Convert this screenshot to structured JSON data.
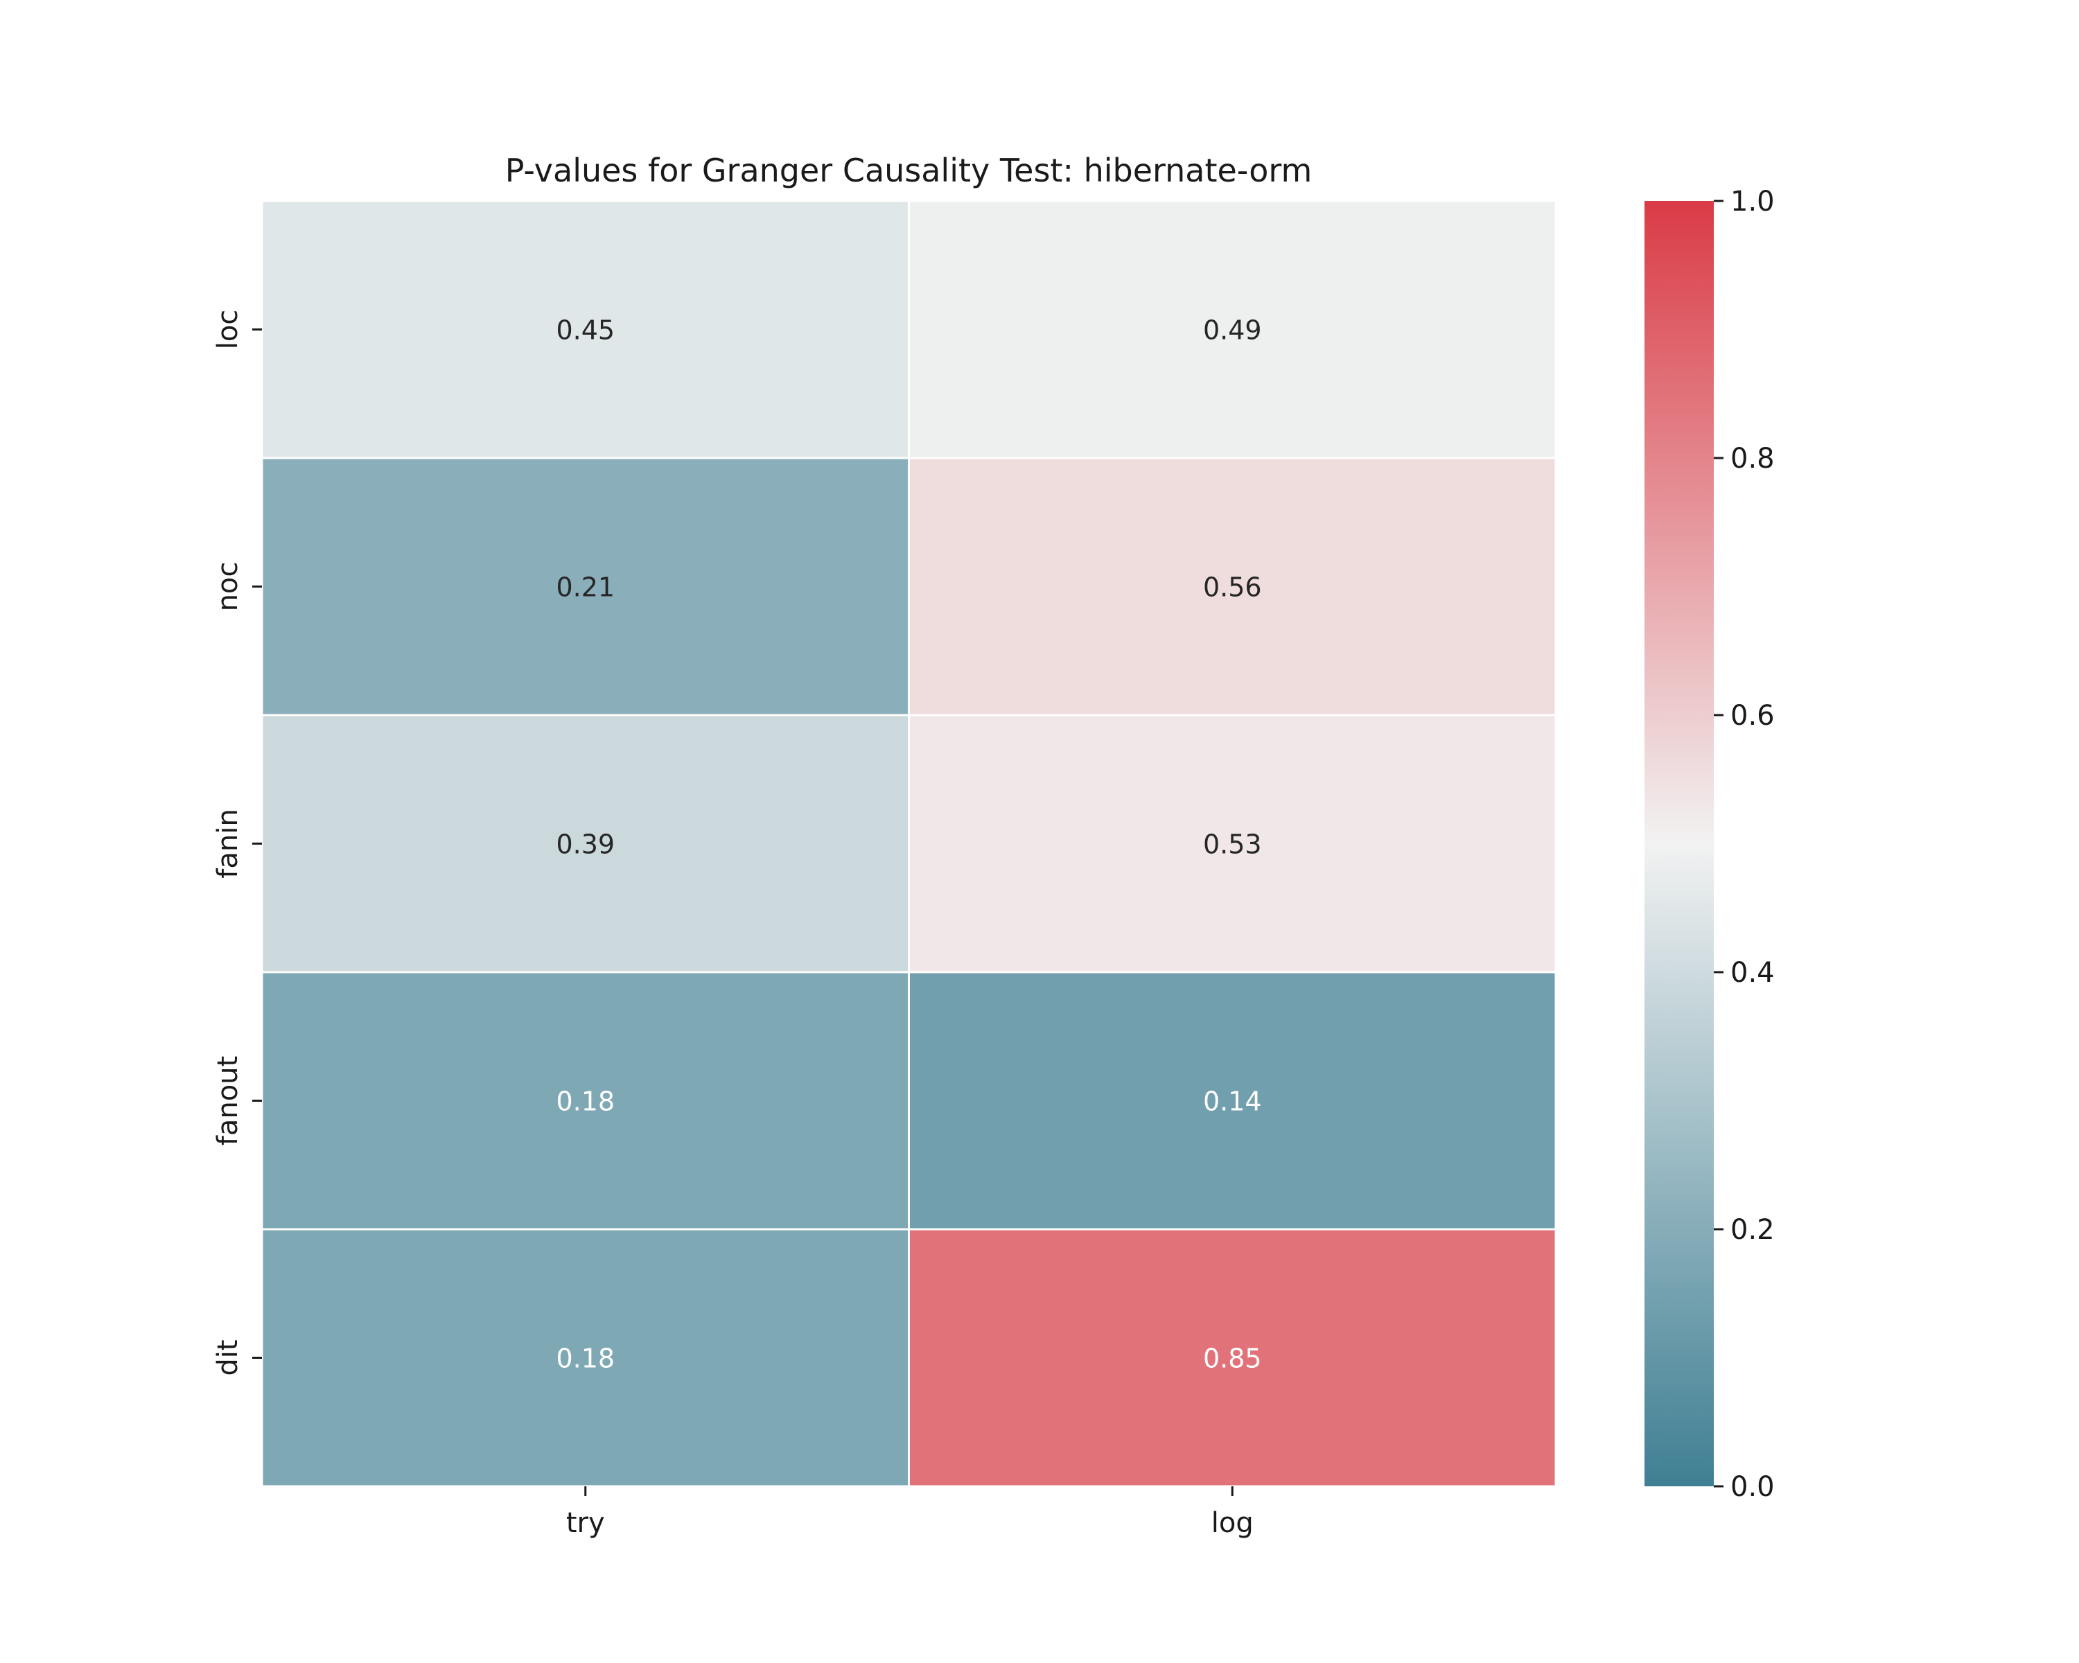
{
  "chart_data": {
    "type": "heatmap",
    "title": "P-values for Granger Causality Test: hibernate-orm",
    "columns": [
      "try",
      "log"
    ],
    "rows": [
      "loc",
      "noc",
      "fanin",
      "fanout",
      "dit"
    ],
    "values": [
      [
        0.45,
        0.49
      ],
      [
        0.21,
        0.56
      ],
      [
        0.39,
        0.53
      ],
      [
        0.18,
        0.14
      ],
      [
        0.18,
        0.85
      ]
    ],
    "value_labels": [
      [
        "0.45",
        "0.49"
      ],
      [
        "0.21",
        "0.56"
      ],
      [
        "0.39",
        "0.53"
      ],
      [
        "0.18",
        "0.14"
      ],
      [
        "0.18",
        "0.85"
      ]
    ],
    "colorbar": {
      "range": [
        0.0,
        1.0
      ],
      "ticks": [
        "0.0",
        "0.2",
        "0.4",
        "0.6",
        "0.8",
        "1.0"
      ],
      "low_color": "#3f7f93",
      "mid_color": "#f2f2f2",
      "high_color": "#da3b46"
    },
    "cell_border_color": "#ffffff",
    "grid": false,
    "legend": "colorbar-right"
  }
}
